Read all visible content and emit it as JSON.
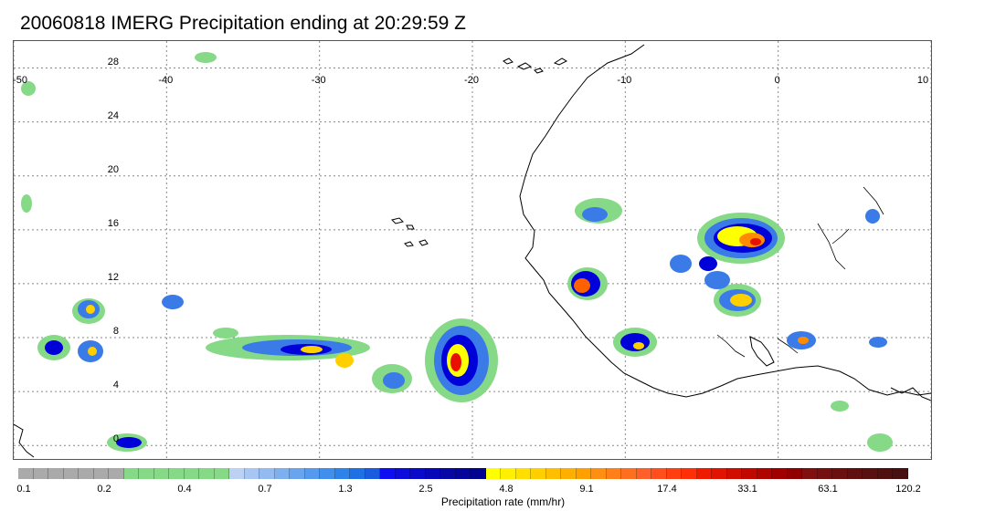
{
  "title": "20060818 IMERG Precipitation ending at 20:29:59 Z",
  "map": {
    "lon_range": [
      -50,
      10
    ],
    "lat_range": [
      -1,
      30
    ],
    "lon_ticks": [
      "-50",
      "-40",
      "-30",
      "-20",
      "-10",
      "0",
      "10"
    ],
    "lat_ticks": [
      "28",
      "24",
      "20",
      "16",
      "12",
      "8",
      "4",
      "0"
    ],
    "grid": "dotted"
  },
  "legend": {
    "title": "Precipitation rate (mm/hr)",
    "tick_labels": [
      "0.1",
      "0.2",
      "0.4",
      "0.7",
      "1.3",
      "2.5",
      "4.8",
      "9.1",
      "17.4",
      "33.1",
      "63.1",
      "120.2"
    ],
    "colors": [
      "#aaaaaa",
      "#aaaaaa",
      "#aaaaaa",
      "#aaaaaa",
      "#aaaaaa",
      "#aaaaaa",
      "#aaaaaa",
      "#86d986",
      "#86d986",
      "#86d986",
      "#86d986",
      "#86d986",
      "#86d986",
      "#86d986",
      "#bcd2f4",
      "#a7c6f3",
      "#93bbf2",
      "#7eb0f0",
      "#69a5ef",
      "#559aee",
      "#408fec",
      "#2c84eb",
      "#1f6fe5",
      "#1a5be0",
      "#0e0ef0",
      "#0c0cdd",
      "#0a0aca",
      "#0808b8",
      "#0707a6",
      "#05059c",
      "#030392",
      "#ffff00",
      "#ffef00",
      "#ffdf00",
      "#ffcf00",
      "#ffbf00",
      "#ffaf00",
      "#ff9f00",
      "#ff8f10",
      "#ff7f18",
      "#ff6f20",
      "#ff5f28",
      "#ff4f1c",
      "#ff3f10",
      "#ff2f08",
      "#f01a00",
      "#e01400",
      "#d00e00",
      "#c00800",
      "#b00400",
      "#a00000",
      "#900000",
      "#801010",
      "#751010",
      "#6a1010",
      "#601010",
      "#581010",
      "#501010",
      "#481010"
    ]
  },
  "colors": {
    "coast": "#000000",
    "grid": "#888888",
    "rain_light": "#86d986",
    "rain_moderate": "#3a7be8",
    "rain_heavy": "#0000d8",
    "rain_yellow": "#ffff00",
    "rain_orange": "#ff8c00",
    "rain_red": "#e81000"
  }
}
